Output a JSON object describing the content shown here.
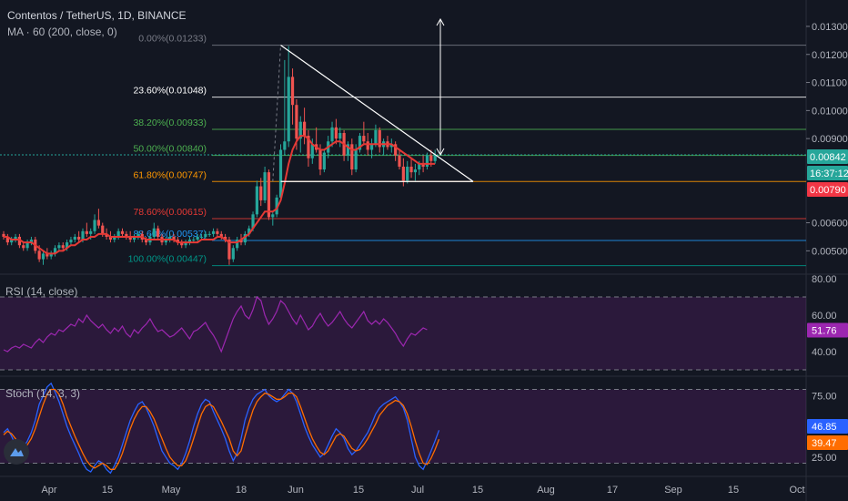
{
  "header": {
    "title": "Contentos / TetherUS, 1D, BINANCE",
    "indicator": "MA · 60 (200, close, 0)"
  },
  "colors": {
    "bg": "#131722",
    "up": "#26a69a",
    "down": "#ef5350",
    "ma": "#e53935",
    "rsi": "#9c27b0",
    "stoch_k": "#2962ff",
    "stoch_d": "#ff6d00",
    "fib_white": "#ffffff",
    "fib_green": "#4caf50",
    "fib_orange": "#ff9800",
    "fib_red": "#e53935",
    "fib_blue": "#2196f3",
    "fib_teal": "#009688",
    "fib_grey": "#787b86"
  },
  "chart_data": [
    {
      "type": "candlestick",
      "title": "Contentos / TetherUS, 1D, BINANCE",
      "x_ticks": [
        "Apr",
        "15",
        "May",
        "18",
        "Jun",
        "15",
        "Jul",
        "15",
        "Aug",
        "17",
        "Sep",
        "15",
        "Oct"
      ],
      "y_ticks": [
        "0.01300",
        "0.01200",
        "0.01100",
        "0.01000",
        "0.00900",
        "0.00842",
        "0.00790",
        "0.00600",
        "0.00500"
      ],
      "ylim": [
        0.0042,
        0.0137
      ],
      "price_tags": [
        {
          "value": 0.00842,
          "label": "0.00842",
          "color": "#26a69a"
        },
        {
          "value": 0.0077,
          "label": "16:37:12",
          "color": "#26a69a"
        },
        {
          "value": 0.0079,
          "label": "0.00790",
          "color": "#f23645"
        }
      ],
      "fib_levels": [
        {
          "label": "0.00%(0.01233)",
          "value": 0.01233,
          "color": "#787b86"
        },
        {
          "label": "23.60%(0.01048)",
          "value": 0.01048,
          "color": "#ffffff"
        },
        {
          "label": "38.20%(0.00933)",
          "value": 0.00933,
          "color": "#4caf50"
        },
        {
          "label": "50.00%(0.00840)",
          "value": 0.0084,
          "color": "#4caf50"
        },
        {
          "label": "61.80%(0.00747)",
          "value": 0.00747,
          "color": "#ff9800"
        },
        {
          "label": "78.60%(0.00615)",
          "value": 0.00615,
          "color": "#e53935"
        },
        {
          "label": "88.60%(0.00537)",
          "value": 0.00537,
          "color": "#2196f3"
        },
        {
          "label": "100.00%(0.00447)",
          "value": 0.00447,
          "color": "#009688"
        }
      ],
      "candles": [
        [
          0.0056,
          0.0057,
          0.0054,
          0.0055
        ],
        [
          0.0055,
          0.0056,
          0.0052,
          0.0053
        ],
        [
          0.0053,
          0.0055,
          0.0052,
          0.0054
        ],
        [
          0.0054,
          0.0056,
          0.0053,
          0.0055
        ],
        [
          0.0055,
          0.0056,
          0.0051,
          0.0052
        ],
        [
          0.0052,
          0.0053,
          0.005,
          0.0051
        ],
        [
          0.0051,
          0.0054,
          0.005,
          0.0053
        ],
        [
          0.0053,
          0.0055,
          0.0052,
          0.0054
        ],
        [
          0.0054,
          0.0055,
          0.0049,
          0.005
        ],
        [
          0.005,
          0.0052,
          0.0046,
          0.0047
        ],
        [
          0.0047,
          0.005,
          0.0045,
          0.0049
        ],
        [
          0.0049,
          0.0051,
          0.0047,
          0.0048
        ],
        [
          0.0048,
          0.005,
          0.0047,
          0.0049
        ],
        [
          0.0049,
          0.0052,
          0.0048,
          0.0051
        ],
        [
          0.0051,
          0.0053,
          0.005,
          0.0052
        ],
        [
          0.0052,
          0.0053,
          0.005,
          0.0051
        ],
        [
          0.0051,
          0.0054,
          0.005,
          0.0053
        ],
        [
          0.0053,
          0.0055,
          0.0052,
          0.0054
        ],
        [
          0.0054,
          0.0056,
          0.0053,
          0.0055
        ],
        [
          0.0055,
          0.0057,
          0.0053,
          0.0054
        ],
        [
          0.0054,
          0.0058,
          0.0053,
          0.0057
        ],
        [
          0.0057,
          0.006,
          0.0055,
          0.0056
        ],
        [
          0.0056,
          0.0058,
          0.0054,
          0.0057
        ],
        [
          0.0057,
          0.0063,
          0.0056,
          0.0061
        ],
        [
          0.0061,
          0.0065,
          0.0058,
          0.0059
        ],
        [
          0.0059,
          0.006,
          0.0055,
          0.0056
        ],
        [
          0.0056,
          0.0058,
          0.0054,
          0.0055
        ],
        [
          0.0055,
          0.0057,
          0.0053,
          0.0054
        ],
        [
          0.0054,
          0.0056,
          0.0053,
          0.0055
        ],
        [
          0.0055,
          0.0058,
          0.0054,
          0.0057
        ],
        [
          0.0057,
          0.0058,
          0.0055,
          0.0056
        ],
        [
          0.0056,
          0.0057,
          0.0054,
          0.0055
        ],
        [
          0.0055,
          0.0057,
          0.0053,
          0.0054
        ],
        [
          0.0054,
          0.0056,
          0.0053,
          0.0055
        ],
        [
          0.0055,
          0.0057,
          0.0054,
          0.0056
        ],
        [
          0.0056,
          0.0057,
          0.0053,
          0.0054
        ],
        [
          0.0054,
          0.0055,
          0.0052,
          0.0053
        ],
        [
          0.0053,
          0.0056,
          0.0052,
          0.0055
        ],
        [
          0.0055,
          0.006,
          0.0054,
          0.0058
        ],
        [
          0.0058,
          0.0059,
          0.0054,
          0.0055
        ],
        [
          0.0055,
          0.0056,
          0.0052,
          0.0053
        ],
        [
          0.0053,
          0.0055,
          0.0052,
          0.0054
        ],
        [
          0.0054,
          0.0056,
          0.0053,
          0.0055
        ],
        [
          0.0055,
          0.0056,
          0.0053,
          0.0054
        ],
        [
          0.0054,
          0.0055,
          0.0052,
          0.0053
        ],
        [
          0.0053,
          0.0054,
          0.0051,
          0.0052
        ],
        [
          0.0052,
          0.0054,
          0.0051,
          0.0053
        ],
        [
          0.0053,
          0.0055,
          0.0052,
          0.0054
        ],
        [
          0.0054,
          0.0055,
          0.0053,
          0.0054
        ],
        [
          0.0054,
          0.0056,
          0.0053,
          0.0055
        ],
        [
          0.0055,
          0.0056,
          0.0054,
          0.0055
        ],
        [
          0.0055,
          0.0057,
          0.0054,
          0.0056
        ],
        [
          0.0056,
          0.0057,
          0.0055,
          0.0056
        ],
        [
          0.0056,
          0.0058,
          0.0055,
          0.0057
        ],
        [
          0.0057,
          0.0058,
          0.0055,
          0.0056
        ],
        [
          0.0056,
          0.0057,
          0.0054,
          0.0055
        ],
        [
          0.0055,
          0.0056,
          0.0053,
          0.0054
        ],
        [
          0.0054,
          0.0055,
          0.0045,
          0.0047
        ],
        [
          0.0047,
          0.0052,
          0.0046,
          0.0051
        ],
        [
          0.0051,
          0.0055,
          0.005,
          0.0054
        ],
        [
          0.0054,
          0.0056,
          0.0052,
          0.0053
        ],
        [
          0.0053,
          0.0057,
          0.0052,
          0.0056
        ],
        [
          0.0056,
          0.0059,
          0.0055,
          0.0058
        ],
        [
          0.0058,
          0.0064,
          0.0057,
          0.0063
        ],
        [
          0.0063,
          0.0075,
          0.0062,
          0.0073
        ],
        [
          0.0073,
          0.0076,
          0.0066,
          0.0068
        ],
        [
          0.0068,
          0.008,
          0.0067,
          0.0078
        ],
        [
          0.0078,
          0.0079,
          0.0061,
          0.0062
        ],
        [
          0.0062,
          0.0064,
          0.0059,
          0.0063
        ],
        [
          0.0063,
          0.007,
          0.0062,
          0.0069
        ],
        [
          0.0069,
          0.0088,
          0.0068,
          0.0086
        ],
        [
          0.0086,
          0.0118,
          0.0084,
          0.0089
        ],
        [
          0.0089,
          0.0123,
          0.0087,
          0.0112
        ],
        [
          0.0112,
          0.0115,
          0.0095,
          0.0102
        ],
        [
          0.0102,
          0.0104,
          0.0086,
          0.009
        ],
        [
          0.009,
          0.0098,
          0.0085,
          0.0096
        ],
        [
          0.0096,
          0.0101,
          0.0088,
          0.0091
        ],
        [
          0.0091,
          0.0093,
          0.008,
          0.0083
        ],
        [
          0.0083,
          0.009,
          0.0081,
          0.0088
        ],
        [
          0.0088,
          0.0094,
          0.0085,
          0.0086
        ],
        [
          0.0086,
          0.0088,
          0.0077,
          0.0079
        ],
        [
          0.0079,
          0.0086,
          0.0078,
          0.0085
        ],
        [
          0.0085,
          0.0091,
          0.0083,
          0.0089
        ],
        [
          0.0089,
          0.0096,
          0.0087,
          0.0094
        ],
        [
          0.0094,
          0.0097,
          0.0088,
          0.009
        ],
        [
          0.009,
          0.0094,
          0.0087,
          0.0092
        ],
        [
          0.0092,
          0.0093,
          0.0082,
          0.0084
        ],
        [
          0.0084,
          0.0089,
          0.0082,
          0.0088
        ],
        [
          0.0088,
          0.009,
          0.0077,
          0.0079
        ],
        [
          0.0079,
          0.0088,
          0.0078,
          0.0086
        ],
        [
          0.0086,
          0.0092,
          0.0085,
          0.0091
        ],
        [
          0.0091,
          0.0096,
          0.0088,
          0.0089
        ],
        [
          0.0089,
          0.0092,
          0.0084,
          0.0086
        ],
        [
          0.0086,
          0.009,
          0.0083,
          0.0088
        ],
        [
          0.0088,
          0.0095,
          0.0087,
          0.0093
        ],
        [
          0.0093,
          0.0094,
          0.0085,
          0.0087
        ],
        [
          0.0087,
          0.009,
          0.0084,
          0.0089
        ],
        [
          0.0089,
          0.0091,
          0.0086,
          0.0087
        ],
        [
          0.0087,
          0.009,
          0.0085,
          0.0088
        ],
        [
          0.0088,
          0.0089,
          0.0082,
          0.0084
        ],
        [
          0.0084,
          0.0086,
          0.0079,
          0.008
        ],
        [
          0.008,
          0.0083,
          0.0073,
          0.0075
        ],
        [
          0.0075,
          0.0082,
          0.0074,
          0.008
        ],
        [
          0.008,
          0.0083,
          0.0076,
          0.0078
        ],
        [
          0.0078,
          0.0081,
          0.0075,
          0.0079
        ],
        [
          0.0079,
          0.0082,
          0.0077,
          0.0081
        ],
        [
          0.0081,
          0.0084,
          0.0078,
          0.008
        ],
        [
          0.008,
          0.0085,
          0.0079,
          0.0084
        ],
        [
          0.0084,
          0.0086,
          0.008,
          0.0082
        ],
        [
          0.0082,
          0.0086,
          0.0081,
          0.0084
        ]
      ],
      "ma_values": [
        0.0055,
        0.0055,
        0.0054,
        0.0054,
        0.0054,
        0.0053,
        0.0053,
        0.0053,
        0.0052,
        0.0051,
        0.005,
        0.0049,
        0.0049,
        0.0049,
        0.005,
        0.005,
        0.0051,
        0.0052,
        0.0052,
        0.0053,
        0.0054,
        0.0054,
        0.0055,
        0.0055,
        0.0056,
        0.0056,
        0.0056,
        0.0055,
        0.0055,
        0.0055,
        0.0055,
        0.0055,
        0.0055,
        0.0055,
        0.0055,
        0.0055,
        0.0054,
        0.0054,
        0.0054,
        0.0054,
        0.0054,
        0.0054,
        0.0054,
        0.0054,
        0.0053,
        0.0053,
        0.0053,
        0.0053,
        0.0053,
        0.0053,
        0.0054,
        0.0054,
        0.0054,
        0.0054,
        0.0055,
        0.0055,
        0.0054,
        0.0053,
        0.0053,
        0.0053,
        0.0054,
        0.0055,
        0.0056,
        0.0058,
        0.006,
        0.0062,
        0.0064,
        0.0064,
        0.0064,
        0.0065,
        0.0068,
        0.0074,
        0.0081,
        0.0086,
        0.0089,
        0.0091,
        0.0091,
        0.009,
        0.0088,
        0.0087,
        0.0086,
        0.0086,
        0.0087,
        0.0088,
        0.0089,
        0.0089,
        0.0088,
        0.0087,
        0.0086,
        0.0086,
        0.0087,
        0.0088,
        0.0088,
        0.0088,
        0.0088,
        0.0088,
        0.0088,
        0.0088,
        0.0088,
        0.0087,
        0.0086,
        0.0085,
        0.0084,
        0.0083,
        0.0082,
        0.0081,
        0.0081,
        0.0081,
        0.0081,
        0.0081
      ]
    },
    {
      "type": "line",
      "title": "RSI (14, close)",
      "y_ticks": [
        "80.00",
        "60.00",
        "40.00"
      ],
      "ylim": [
        27,
        82
      ],
      "bands": [
        70,
        30
      ],
      "last_value_label": "51.76",
      "values": [
        41,
        40,
        42,
        43,
        42,
        44,
        43,
        42,
        45,
        47,
        45,
        48,
        50,
        49,
        52,
        51,
        53,
        55,
        54,
        58,
        56,
        60,
        57,
        55,
        53,
        55,
        52,
        50,
        53,
        51,
        54,
        50,
        48,
        52,
        50,
        53,
        55,
        58,
        54,
        51,
        52,
        50,
        48,
        49,
        51,
        53,
        50,
        47,
        51,
        52,
        54,
        56,
        52,
        49,
        45,
        40,
        46,
        52,
        58,
        62,
        65,
        60,
        58,
        63,
        70,
        68,
        60,
        55,
        58,
        62,
        68,
        66,
        62,
        58,
        55,
        60,
        56,
        52,
        54,
        58,
        61,
        57,
        54,
        56,
        59,
        62,
        58,
        55,
        53,
        56,
        59,
        62,
        57,
        55,
        57,
        55,
        58,
        56,
        53,
        50,
        46,
        43,
        47,
        50,
        49,
        51,
        53,
        52
      ]
    },
    {
      "type": "line",
      "title": "Stoch (14, 3, 3)",
      "y_ticks": [
        "75.00",
        "25.00"
      ],
      "ylim": [
        10,
        90
      ],
      "bands": [
        80,
        20
      ],
      "last_value_labels": [
        "46.85",
        "39.47"
      ],
      "series": [
        {
          "values": [
            45,
            48,
            42,
            35,
            30,
            33,
            38,
            45,
            55,
            68,
            75,
            82,
            85,
            78,
            70,
            60,
            50,
            42,
            35,
            28,
            20,
            15,
            13,
            18,
            22,
            20,
            15,
            12,
            18,
            25,
            35,
            45,
            55,
            62,
            68,
            70,
            65,
            58,
            50,
            40,
            30,
            25,
            20,
            18,
            15,
            20,
            28,
            38,
            50,
            60,
            68,
            72,
            70,
            62,
            55,
            48,
            40,
            30,
            22,
            28,
            40,
            55,
            65,
            72,
            76,
            78,
            80,
            75,
            72,
            70,
            72,
            76,
            80,
            77,
            70,
            60,
            50,
            42,
            35,
            30,
            25,
            28,
            35,
            42,
            48,
            45,
            40,
            32,
            27,
            30,
            35,
            40,
            45,
            52,
            60,
            65,
            68,
            70,
            72,
            74,
            70,
            65,
            55,
            40,
            25,
            18,
            15,
            22,
            30,
            38,
            46.85
          ]
        },
        {
          "values": [
            43,
            46,
            44,
            40,
            35,
            33,
            35,
            40,
            48,
            58,
            68,
            76,
            80,
            80,
            76,
            68,
            58,
            50,
            42,
            35,
            28,
            22,
            18,
            16,
            18,
            20,
            18,
            15,
            15,
            20,
            28,
            38,
            48,
            56,
            62,
            66,
            66,
            62,
            56,
            48,
            40,
            32,
            25,
            21,
            18,
            18,
            22,
            30,
            40,
            50,
            60,
            66,
            68,
            66,
            60,
            54,
            47,
            40,
            30,
            26,
            30,
            42,
            53,
            63,
            70,
            74,
            77,
            76,
            74,
            72,
            72,
            74,
            77,
            77,
            74,
            66,
            57,
            48,
            40,
            34,
            29,
            27,
            30,
            36,
            42,
            44,
            42,
            37,
            32,
            30,
            31,
            35,
            40,
            46,
            52,
            59,
            63,
            67,
            69,
            71,
            70,
            67,
            60,
            50,
            38,
            28,
            20,
            19,
            24,
            31,
            39.47
          ]
        }
      ]
    }
  ]
}
